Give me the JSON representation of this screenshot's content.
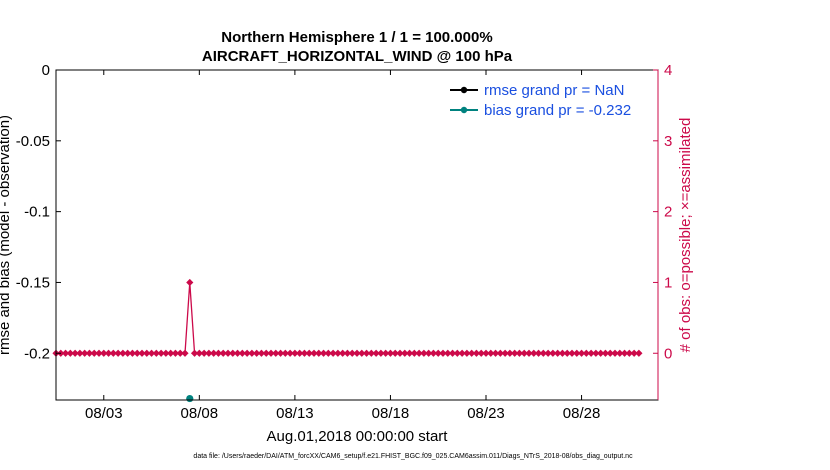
{
  "chart_data": {
    "type": "line",
    "title": "Northern Hemisphere 1 / 1 = 100.000%",
    "subtitle": "AIRCRAFT_HORIZONTAL_WIND @ 100 hPa",
    "xlabel": "Aug.01,2018 00:00:00 start",
    "ylabel": "rmse and bias (model - observation)",
    "y2label": "# of obs: o=possible; ×=assimilated",
    "footnote": "data file: /Users/raeder/DAI/ATM_forcXX/CAM6_setup/f.e21.FHIST_BGC.f09_025.CAM6assim.011/Diags_NTrS_2018-08/obs_diag_output.nc",
    "xlim_days": [
      0,
      31.5
    ],
    "ylim": [
      -0.233,
      0
    ],
    "y2lim": [
      -0.66,
      4
    ],
    "x_ticks": [
      {
        "label": "08/03",
        "day": 2.5
      },
      {
        "label": "08/08",
        "day": 7.5
      },
      {
        "label": "08/13",
        "day": 12.5
      },
      {
        "label": "08/18",
        "day": 17.5
      },
      {
        "label": "08/23",
        "day": 22.5
      },
      {
        "label": "08/28",
        "day": 27.5
      }
    ],
    "y_ticks": [
      "0",
      "-0.05",
      "-0.1",
      "-0.15",
      "-0.2"
    ],
    "y_tick_values": [
      0,
      -0.05,
      -0.1,
      -0.15,
      -0.2
    ],
    "y2_ticks": [
      "0",
      "1",
      "2",
      "3",
      "4"
    ],
    "y2_tick_values": [
      0,
      1,
      2,
      3,
      4
    ],
    "grid": false,
    "legend_placement": "top-right",
    "series": [
      {
        "name": "rmse grand pr = NaN",
        "color": "#000000",
        "marker": "circle",
        "points": []
      },
      {
        "name": "bias grand pr = -0.232",
        "color": "#00827f",
        "marker": "circle",
        "points": [
          {
            "day": 7.0,
            "value": -0.232
          }
        ]
      }
    ],
    "obs_counts": {
      "color": "#cc0a4a",
      "start_day": 0.0,
      "step_day": 0.25,
      "count": 123,
      "default_value": 0,
      "nonzero": [
        {
          "day": 7.0,
          "value": 1
        }
      ]
    }
  }
}
